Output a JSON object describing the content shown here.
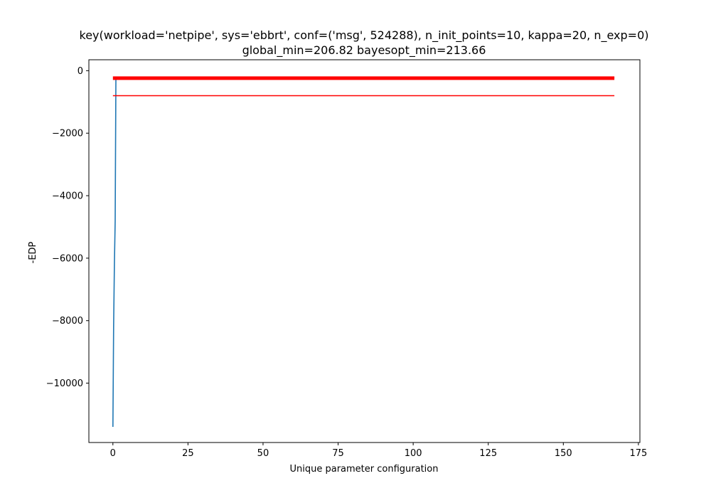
{
  "chart_data": {
    "type": "line",
    "title_line1": "key(workload='netpipe', sys='ebbrt', conf=('msg', 524288), n_init_points=10, kappa=20, n_exp=0)",
    "title_line2": "global_min=206.82 bayesopt_min=213.66",
    "xlabel": "Unique parameter configuration",
    "ylabel": "-EDP",
    "xlim": [
      -8,
      175.5
    ],
    "ylim": [
      -11900,
      350
    ],
    "xticks": [
      0,
      25,
      50,
      75,
      100,
      125,
      150,
      175
    ],
    "xtick_labels": [
      "0",
      "25",
      "50",
      "75",
      "100",
      "125",
      "150",
      "175"
    ],
    "yticks": [
      0,
      -2000,
      -4000,
      -6000,
      -8000,
      -10000
    ],
    "ytick_labels": [
      "0",
      "−2000",
      "−4000",
      "−6000",
      "−8000",
      "−10000"
    ],
    "grid": false,
    "series": [
      {
        "color": "#1f77b4",
        "style": "line",
        "x": [
          0,
          0.25,
          0.5,
          0.75,
          1,
          1.5,
          2,
          5,
          10,
          30,
          60,
          100,
          140,
          167
        ],
        "y": [
          -11400,
          -8200,
          -6200,
          -4800,
          -280,
          -260,
          -250,
          -240,
          -235,
          -232,
          -230,
          -228,
          -226,
          -225
        ]
      },
      {
        "color": "#ff0000",
        "style": "thick-line",
        "x": [
          0,
          167
        ],
        "y": [
          -240,
          -240
        ]
      },
      {
        "color": "#ff0000",
        "style": "line",
        "x": [
          0,
          167
        ],
        "y": [
          -800,
          -800
        ]
      }
    ]
  }
}
